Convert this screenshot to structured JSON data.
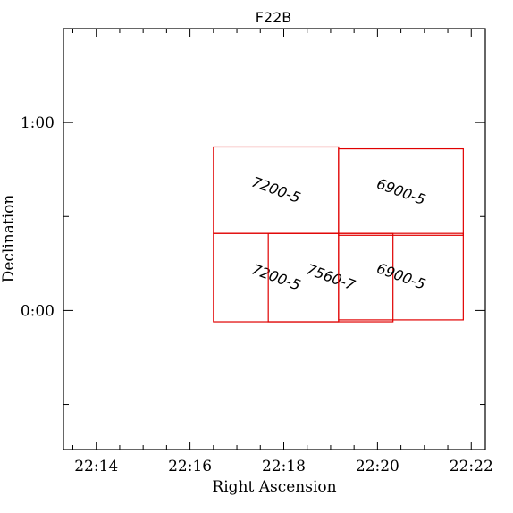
{
  "chart_data": {
    "type": "scatter",
    "title": "F22B",
    "xlabel": "Right Ascension",
    "ylabel": "Declination",
    "xlim_minutes": [
      13.3,
      22.3
    ],
    "ylim_degrees": [
      -0.74,
      1.5
    ],
    "x_ticks": [
      {
        "value": 14,
        "label": "22:14"
      },
      {
        "value": 16,
        "label": "22:16"
      },
      {
        "value": 18,
        "label": "22:18"
      },
      {
        "value": 20,
        "label": "22:20"
      },
      {
        "value": 22,
        "label": "22:22"
      }
    ],
    "y_ticks": [
      {
        "value": 0,
        "label": "0:00"
      },
      {
        "value": 1,
        "label": "1:00"
      }
    ],
    "x_minor_step": 0.5,
    "y_minor_step": 0.5,
    "color": "#e00000",
    "fields": [
      {
        "label": "7200-5",
        "ra_min": 16.5,
        "ra_max": 19.17,
        "dec_min": 0.41,
        "dec_max": 0.87
      },
      {
        "label": "6900-5",
        "ra_min": 19.17,
        "ra_max": 21.83,
        "dec_min": 0.4,
        "dec_max": 0.86
      },
      {
        "label": "7200-5",
        "ra_min": 16.5,
        "ra_max": 19.17,
        "dec_min": -0.06,
        "dec_max": 0.41
      },
      {
        "label": "7560-7",
        "ra_min": 17.67,
        "ra_max": 20.33,
        "dec_min": -0.06,
        "dec_max": 0.41
      },
      {
        "label": "6900-5",
        "ra_min": 19.17,
        "ra_max": 21.83,
        "dec_min": -0.05,
        "dec_max": 0.41
      }
    ]
  }
}
